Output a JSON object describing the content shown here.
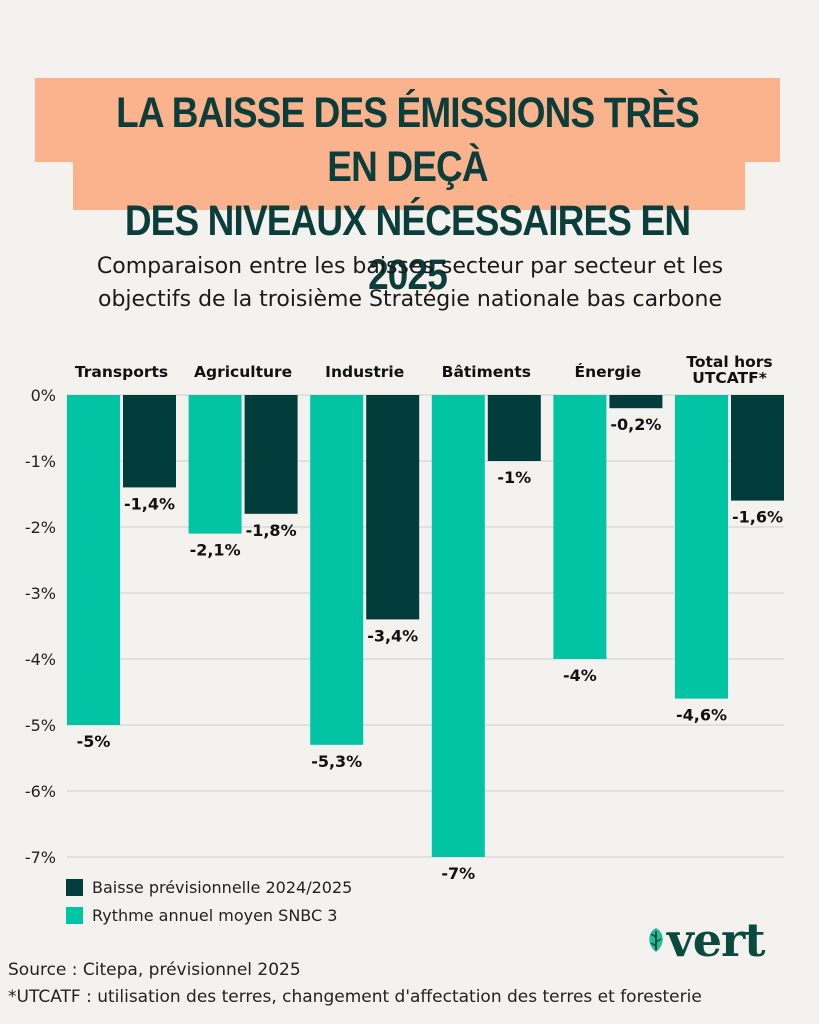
{
  "title": {
    "line1": "LA BAISSE DES ÉMISSIONS TRÈS EN DEÇÀ",
    "line2": "DES NIVEAUX NÉCESSAIRES EN 2025"
  },
  "subtitle": {
    "line1": "Comparaison entre les baisses secteur par secteur et les",
    "line2": "objectifs de la troisième Stratégie nationale bas carbone"
  },
  "colors": {
    "background": "#f3f2ee",
    "title_box": "#fbb38e",
    "title_text": "#0b3d3a",
    "snbc": "#00c4a3",
    "forecast": "#013d3b",
    "gridline": "#cfcfcb"
  },
  "chart_data": {
    "type": "bar",
    "title": "LA BAISSE DES ÉMISSIONS TRÈS EN DEÇÀ DES NIVEAUX NÉCESSAIRES EN 2025",
    "subtitle": "Comparaison entre les baisses secteur par secteur et les objectifs de la troisième Stratégie nationale bas carbone",
    "categories": [
      [
        "Transports"
      ],
      [
        "Agriculture"
      ],
      [
        "Industrie"
      ],
      [
        "Bâtiments"
      ],
      [
        "Énergie"
      ],
      [
        "Total hors",
        "UTCATF*"
      ]
    ],
    "series": [
      {
        "name": "Rythme annuel moyen SNBC 3",
        "color": "#00c4a3",
        "values": [
          -5,
          -2.1,
          -5.3,
          -7,
          -4,
          -4.6
        ],
        "labels": [
          "-5%",
          "-2,1%",
          "-5,3%",
          "-7%",
          "-4%",
          "-4,6%"
        ]
      },
      {
        "name": "Baisse prévisionnelle 2024/2025",
        "color": "#013d3b",
        "values": [
          -1.4,
          -1.8,
          -3.4,
          -1,
          -0.2,
          -1.6
        ],
        "labels": [
          "-1,4%",
          "-1,8%",
          "-3,4%",
          "-1%",
          "-0,2%",
          "-1,6%"
        ]
      }
    ],
    "yticks": [
      0,
      -1,
      -2,
      -3,
      -4,
      -5,
      -6,
      -7
    ],
    "ytick_labels": [
      "0%",
      "-1%",
      "-2%",
      "-3%",
      "-4%",
      "-5%",
      "-6%",
      "-7%"
    ],
    "ylim": [
      -7,
      0
    ],
    "xlabel": "",
    "ylabel": "",
    "grid": true,
    "legend_position": "bottom-left",
    "legend_order": [
      "Baisse prévisionnelle 2024/2025",
      "Rythme annuel moyen SNBC 3"
    ]
  },
  "footer": {
    "source": "Source : Citepa, prévisionnel 2025",
    "note": "*UTCATF : utilisation des terres, changement d'affectation des terres et foresterie"
  },
  "logo": {
    "text": "vert",
    "icon": "leaf-icon"
  }
}
